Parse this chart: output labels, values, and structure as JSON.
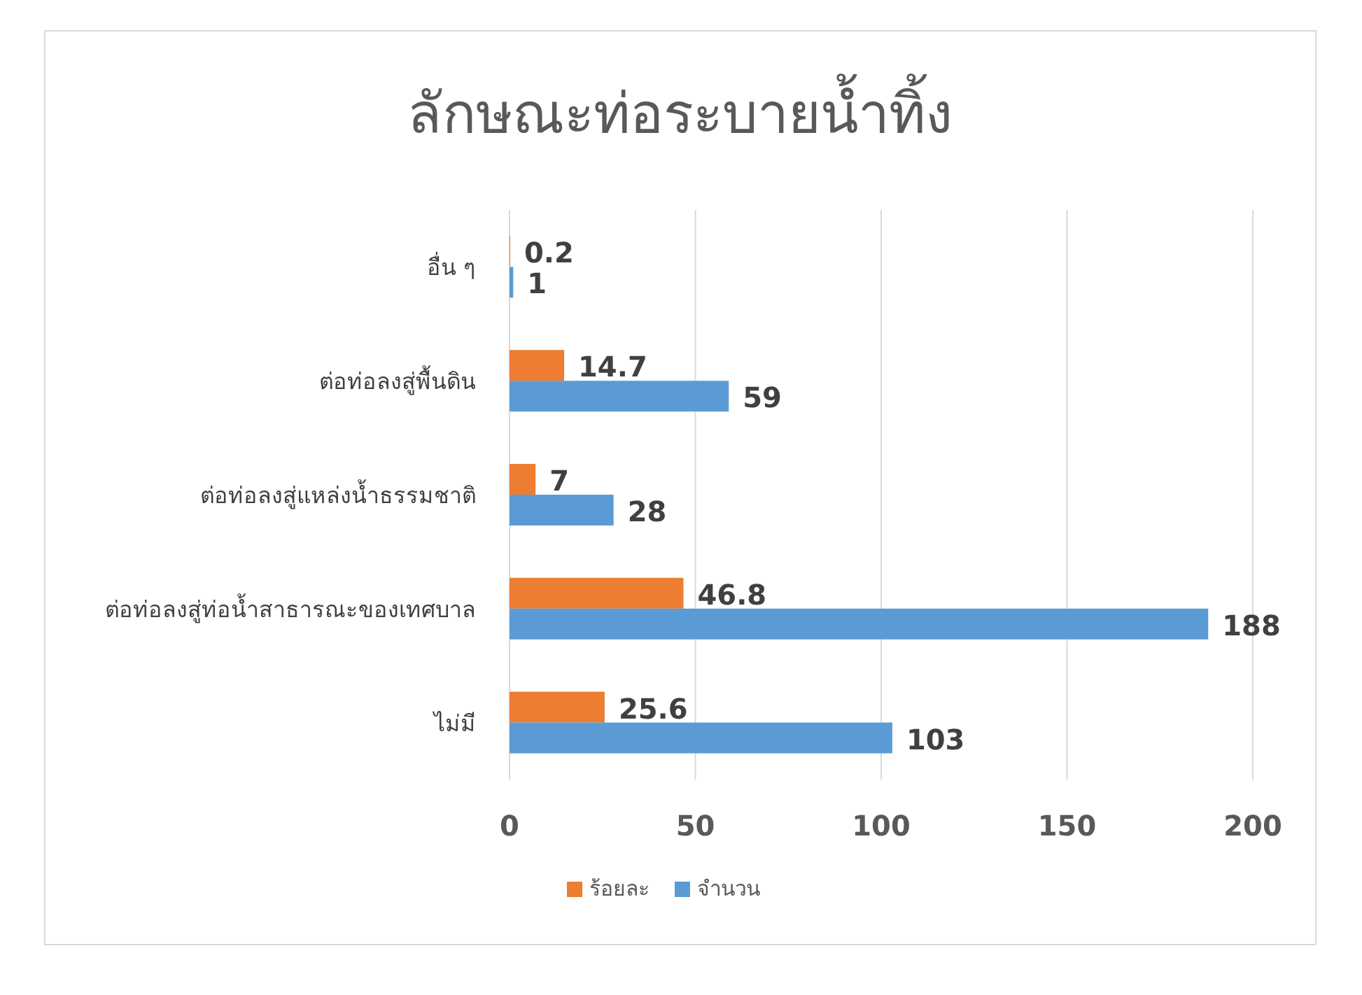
{
  "chart_data": {
    "type": "bar",
    "orientation": "horizontal",
    "title": "ลักษณะท่อระบายน้ำทิ้ง",
    "categories": [
      "อื่น ๆ",
      "ต่อท่อลงสู่พื้นดิน",
      "ต่อท่อลงสู่แหล่งน้ำธรรมชาติ",
      "ต่อท่อลงสู่ท่อน้ำสาธารณะของเทศบาล",
      "ไม่มี"
    ],
    "series": [
      {
        "name": "ร้อยละ",
        "color": "#ed7d31",
        "values": [
          0.2,
          14.7,
          7,
          46.8,
          25.6
        ]
      },
      {
        "name": "จำนวน",
        "color": "#5b9bd5",
        "values": [
          1,
          59,
          28,
          188,
          103
        ]
      }
    ],
    "xlim": [
      0,
      200
    ],
    "xticks": [
      0,
      50,
      100,
      150,
      200
    ],
    "grid": "x",
    "legend": "bottom",
    "data_labels": true
  }
}
